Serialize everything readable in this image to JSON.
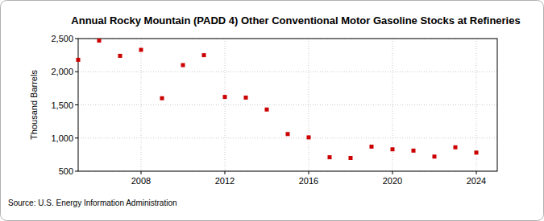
{
  "chart_data": {
    "type": "scatter",
    "title": "Annual Rocky Mountain (PADD 4) Other Conventional Motor Gasoline Stocks at Refineries",
    "ylabel": "Thousand Barrels",
    "source": "Source: U.S. Energy Information Administration",
    "x": [
      2005,
      2006,
      2007,
      2008,
      2009,
      2010,
      2011,
      2012,
      2013,
      2014,
      2015,
      2016,
      2017,
      2018,
      2019,
      2020,
      2021,
      2022,
      2023,
      2024
    ],
    "values": [
      2180,
      2470,
      2240,
      2330,
      1600,
      2100,
      2250,
      1620,
      1610,
      1430,
      1060,
      1010,
      710,
      700,
      870,
      830,
      810,
      720,
      860,
      780
    ],
    "color": "#cc0000",
    "marker": "square",
    "xlim": [
      2005,
      2025
    ],
    "xticks": [
      2008,
      2012,
      2016,
      2020,
      2024
    ],
    "ylim": [
      500,
      2500
    ],
    "yticks": [
      {
        "value": 500,
        "label": "500"
      },
      {
        "value": 1000,
        "label": "1,000"
      },
      {
        "value": 1500,
        "label": "1,500"
      },
      {
        "value": 2000,
        "label": "2,000"
      },
      {
        "value": 2500,
        "label": "2,500"
      }
    ],
    "grid": true
  }
}
